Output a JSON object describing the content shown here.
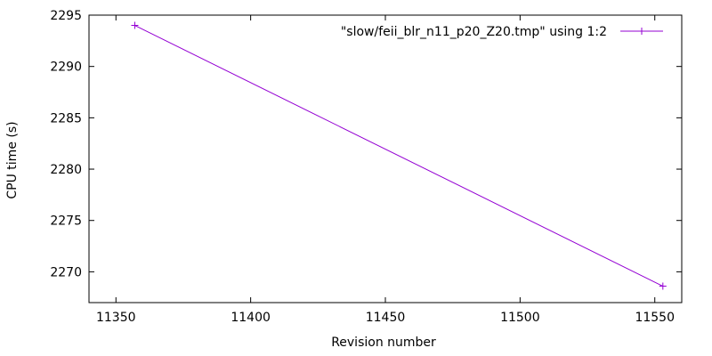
{
  "chart_data": {
    "type": "line",
    "title": "",
    "xlabel": "Revision number",
    "ylabel": "CPU time (s)",
    "xlim": [
      11340,
      11560
    ],
    "ylim": [
      2267,
      2295
    ],
    "xticks": [
      11350,
      11400,
      11450,
      11500,
      11550
    ],
    "yticks": [
      2270,
      2275,
      2280,
      2285,
      2290,
      2295
    ],
    "grid": false,
    "legend_position": "top-right",
    "series": [
      {
        "name": "\"slow/feii_blr_n11_p20_Z20.tmp\" using 1:2",
        "color": "#9400d3",
        "marker": "plus",
        "points": [
          {
            "x": 11357,
            "y": 2294
          },
          {
            "x": 11553,
            "y": 2268.6
          }
        ]
      }
    ]
  }
}
